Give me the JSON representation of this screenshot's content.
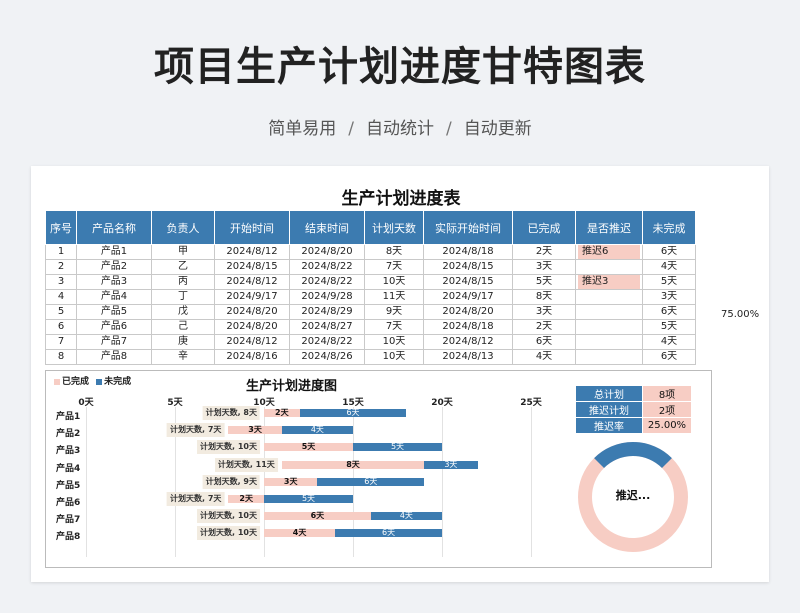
{
  "page": {
    "title": "项目生产计划进度甘特图表",
    "subtitle_parts": [
      "简单易用",
      "/",
      "自动统计",
      "/",
      "自动更新"
    ]
  },
  "table": {
    "title": "生产计划进度表",
    "headers": [
      "序号",
      "产品名称",
      "负责人",
      "开始时间",
      "结束时间",
      "计划天数",
      "实际开始时间",
      "已完成",
      "是否推迟",
      "未完成"
    ],
    "rows": [
      [
        "1",
        "产品1",
        "甲",
        "2024/8/12",
        "2024/8/20",
        "8天",
        "2024/8/18",
        "2天",
        "推迟6",
        "6天"
      ],
      [
        "2",
        "产品2",
        "乙",
        "2024/8/15",
        "2024/8/22",
        "7天",
        "2024/8/15",
        "3天",
        "",
        "4天"
      ],
      [
        "3",
        "产品3",
        "丙",
        "2024/8/12",
        "2024/8/22",
        "10天",
        "2024/8/15",
        "5天",
        "推迟3",
        "5天"
      ],
      [
        "4",
        "产品4",
        "丁",
        "2024/9/17",
        "2024/9/28",
        "11天",
        "2024/9/17",
        "8天",
        "",
        "3天"
      ],
      [
        "5",
        "产品5",
        "戊",
        "2024/8/20",
        "2024/8/29",
        "9天",
        "2024/8/20",
        "3天",
        "",
        "6天"
      ],
      [
        "6",
        "产品6",
        "己",
        "2024/8/20",
        "2024/8/27",
        "7天",
        "2024/8/18",
        "2天",
        "",
        "5天"
      ],
      [
        "7",
        "产品7",
        "庚",
        "2024/8/12",
        "2024/8/22",
        "10天",
        "2024/8/12",
        "6天",
        "",
        "4天"
      ],
      [
        "8",
        "产品8",
        "辛",
        "2024/8/16",
        "2024/8/26",
        "10天",
        "2024/8/13",
        "4天",
        "",
        "6天"
      ]
    ],
    "side_percent": "75.00%"
  },
  "colors": {
    "done": "#f7cdc4",
    "todo": "#3c7bb0",
    "header": "#3c7bb0"
  },
  "chart_data": {
    "type": "bar",
    "stacked": true,
    "orientation": "horizontal",
    "title": "生产计划进度图",
    "legend": [
      "已完成",
      "未完成"
    ],
    "legend_position": "top-left",
    "x_ticks": [
      "0天",
      "5天",
      "10天",
      "15天",
      "20天",
      "25天"
    ],
    "xlim": [
      0,
      27
    ],
    "categories": [
      "产品1",
      "产品2",
      "产品3",
      "产品4",
      "产品5",
      "产品6",
      "产品7",
      "产品8"
    ],
    "plan_labels": [
      "计划天数, 8天",
      "计划天数, 7天",
      "计划天数, 10天",
      "计划天数, 11天",
      "计划天数, 9天",
      "计划天数, 7天",
      "计划天数, 10天",
      "计划天数, 10天"
    ],
    "offsets": [
      10,
      8,
      10,
      11,
      10,
      8,
      10,
      10
    ],
    "series": [
      {
        "name": "已完成",
        "values": [
          2,
          3,
          5,
          8,
          3,
          2,
          6,
          4
        ],
        "labels": [
          "2天",
          "3天",
          "5天",
          "8天",
          "3天",
          "2天",
          "6天",
          "4天"
        ]
      },
      {
        "name": "未完成",
        "values": [
          6,
          4,
          5,
          3,
          6,
          5,
          4,
          6
        ],
        "labels": [
          "6天",
          "4天",
          "5天",
          "3天",
          "6天",
          "5天",
          "4天",
          "6天"
        ]
      }
    ]
  },
  "summary": {
    "rows": [
      {
        "label": "总计划",
        "value": "8项"
      },
      {
        "label": "推迟计划",
        "value": "2项"
      },
      {
        "label": "推迟率",
        "value": "25.00%"
      }
    ],
    "donut": {
      "value": 0.25,
      "label": "推迟..."
    }
  }
}
